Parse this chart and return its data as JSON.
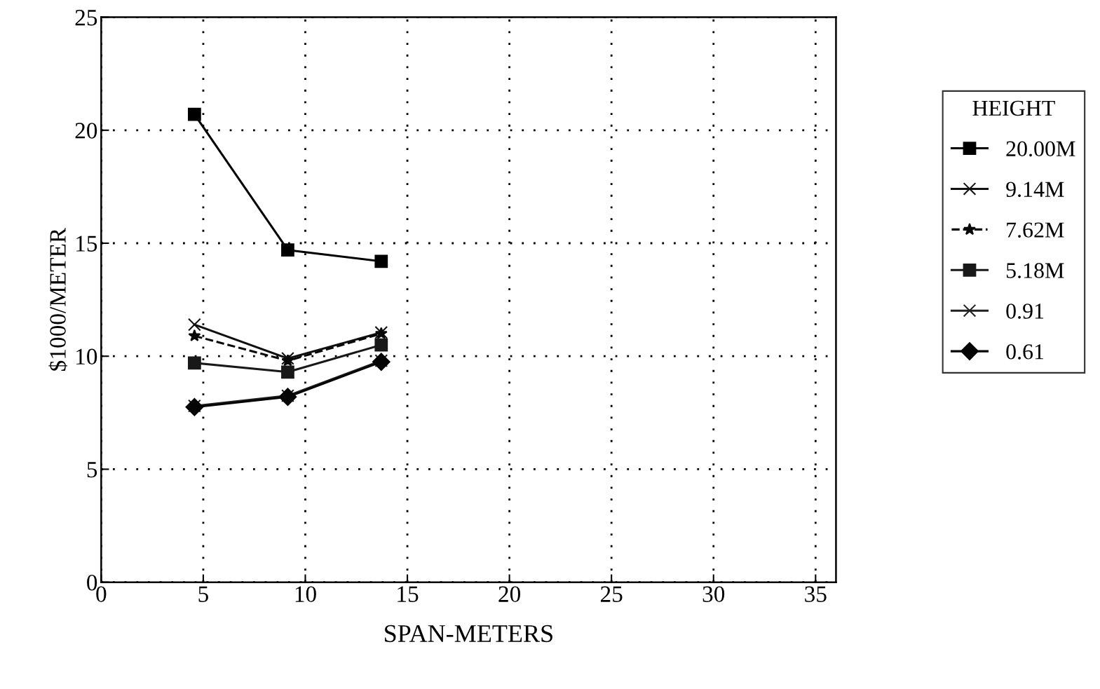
{
  "chart_data": {
    "type": "line",
    "xlabel": "SPAN-METERS",
    "ylabel": "$1000/METER",
    "legend_title": "HEIGHT",
    "legend": "right",
    "grid": true,
    "x": [
      4.57,
      9.14,
      13.72
    ],
    "xlim": [
      0,
      36
    ],
    "xticks": [
      0,
      5,
      10,
      15,
      20,
      25,
      30,
      35
    ],
    "ylim": [
      0,
      25
    ],
    "yticks": [
      0,
      5,
      10,
      15,
      20,
      25
    ],
    "series": [
      {
        "name": "20.00M",
        "color": "#000000",
        "values": [
          20.7,
          14.7,
          14.2
        ],
        "marker": "square",
        "line_style": "solid"
      },
      {
        "name": "9.14M",
        "color": "#101010",
        "values": [
          11.4,
          9.9,
          11.05
        ],
        "marker": "cross",
        "line_style": "solid"
      },
      {
        "name": "7.62M",
        "color": "#080808",
        "values": [
          10.9,
          9.8,
          11.0
        ],
        "marker": "star",
        "line_style": "dashed"
      },
      {
        "name": "5.18M",
        "color": "#181818",
        "values": [
          9.7,
          9.3,
          10.5
        ],
        "marker": "square",
        "line_style": "solid"
      },
      {
        "name": "0.91",
        "color": "#202020",
        "values": [
          7.8,
          8.25,
          9.8
        ],
        "marker": "cross",
        "line_style": "solid"
      },
      {
        "name": "0.61",
        "color": "#050505",
        "values": [
          7.75,
          8.2,
          9.75
        ],
        "marker": "diamond",
        "line_style": "solid"
      }
    ]
  }
}
